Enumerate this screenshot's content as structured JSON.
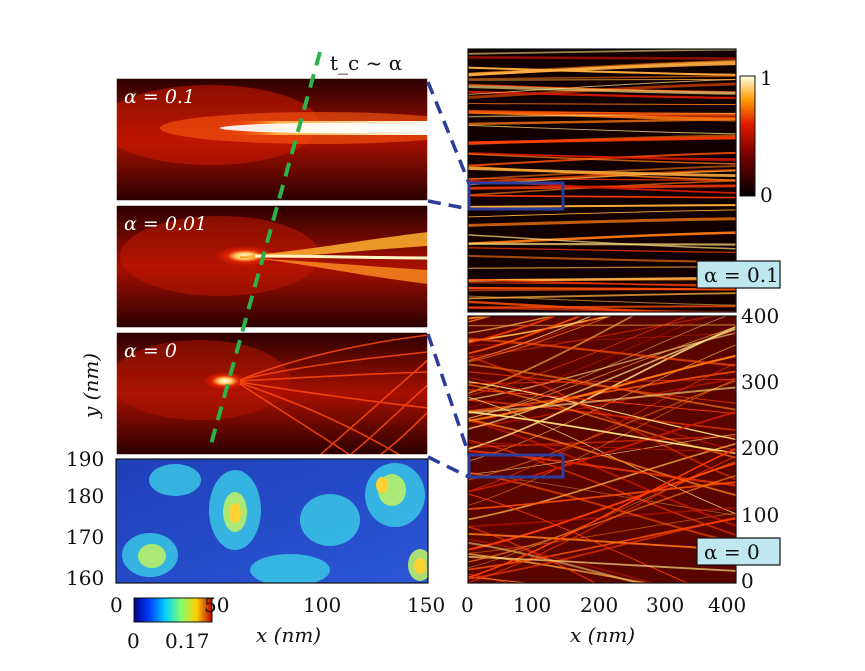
{
  "figure": {
    "annotation": "t_c ~ α",
    "left_panels": [
      {
        "label": "α = 0.1"
      },
      {
        "label": "α = 0.01"
      },
      {
        "label": "α = 0"
      }
    ],
    "right_panels": [
      {
        "label": "α = 0.1"
      },
      {
        "label": "α = 0"
      }
    ],
    "left_y_axis": {
      "label": "y (nm)",
      "ticks": [
        "190",
        "180",
        "170",
        "160"
      ]
    },
    "left_x_axis": {
      "label": "x (nm)",
      "ticks": [
        "0",
        "50",
        "100",
        "150"
      ]
    },
    "right_y_axis": {
      "ticks": [
        "400",
        "300",
        "200",
        "100",
        "0"
      ]
    },
    "right_x_axis": {
      "label": "x (nm)",
      "ticks": [
        "0",
        "100",
        "200",
        "300",
        "400"
      ]
    },
    "colorbar_top": {
      "max": "1",
      "min": "0"
    },
    "colorbar_bottom": {
      "min": "0",
      "max": "0.17"
    },
    "colors": {
      "dashed_line": "#2bb34a",
      "zoom_box": "#2b3c9a",
      "label_box": "#bfe7f0"
    }
  }
}
